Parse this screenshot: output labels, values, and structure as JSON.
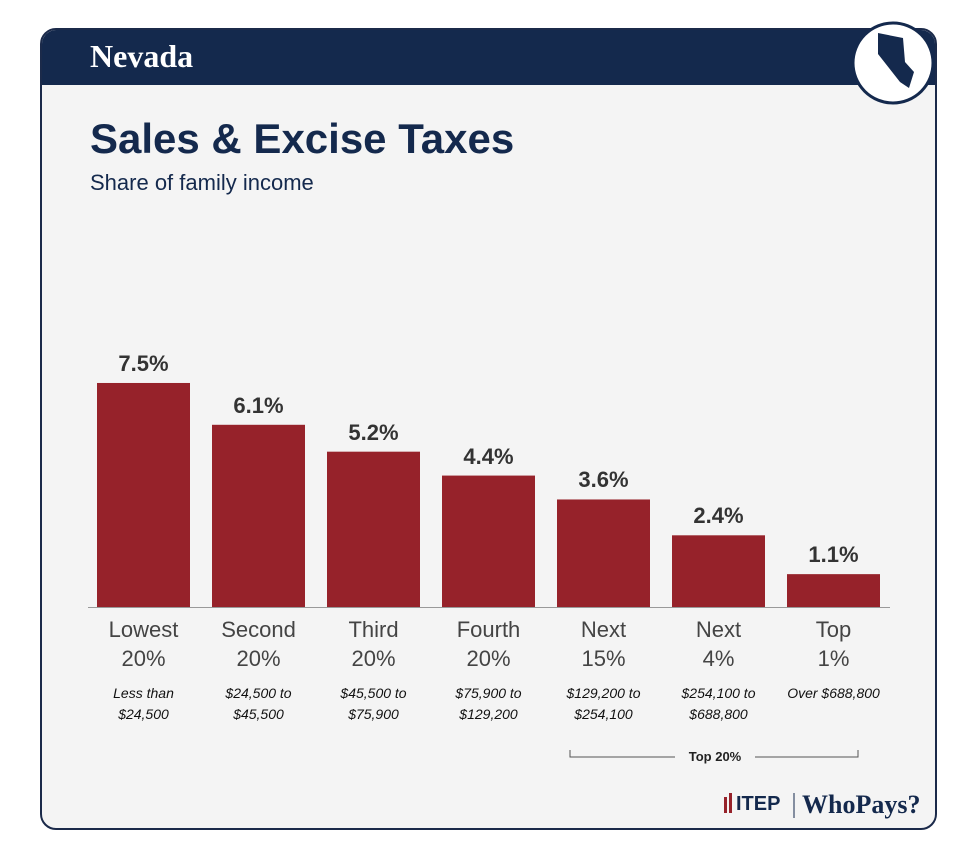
{
  "state": "Nevada",
  "chart_data": {
    "type": "bar",
    "title": "Sales & Excise Taxes",
    "subtitle": "Share of family income",
    "categories": [
      "Lowest 20%",
      "Second 20%",
      "Third 20%",
      "Fourth 20%",
      "Next 15%",
      "Next 4%",
      "Top 1%"
    ],
    "ranges": [
      "Less than $24,500",
      "$24,500 to $45,500",
      "$45,500 to $75,900",
      "$75,900 to $129,200",
      "$129,200 to $254,100",
      "$254,100 to $688,800",
      "Over $688,800"
    ],
    "values": [
      7.5,
      6.1,
      5.2,
      4.4,
      3.6,
      2.4,
      1.1
    ],
    "value_labels": [
      "7.5%",
      "6.1%",
      "5.2%",
      "4.4%",
      "3.6%",
      "2.4%",
      "1.1%"
    ],
    "color": "#96222a",
    "bracket_label": "Top 20%"
  },
  "logo": [
    "ITEP",
    "WhoPays?"
  ]
}
